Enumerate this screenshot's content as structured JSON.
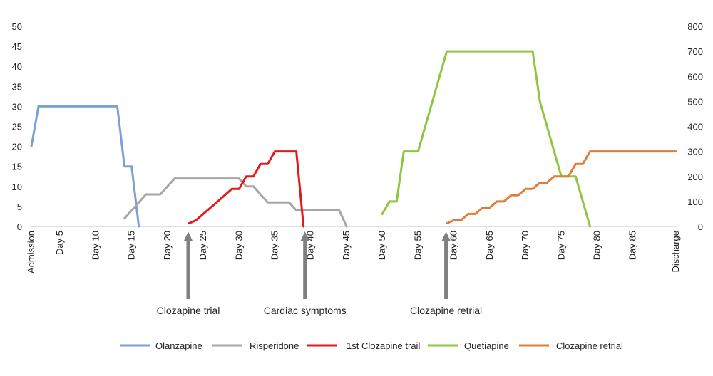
{
  "chart_data": {
    "type": "line",
    "title": "",
    "x_tick_labels": [
      "Admission",
      "Day 5",
      "Day 10",
      "Day 15",
      "Day 20",
      "Day 25",
      "Day 30",
      "Day 35",
      "Day 40",
      "Day 45",
      "Day 50",
      "Day 55",
      "Day 60",
      "Day 65",
      "Day 70",
      "Day 75",
      "Day 80",
      "Day 85",
      "Discharge"
    ],
    "x_tick_days": [
      1,
      5,
      10,
      15,
      20,
      25,
      30,
      35,
      40,
      45,
      50,
      55,
      60,
      65,
      70,
      75,
      80,
      85,
      91
    ],
    "x_range": [
      1,
      91
    ],
    "y_left": {
      "range": [
        0,
        50
      ],
      "ticks": [
        0,
        5,
        10,
        15,
        20,
        25,
        30,
        35,
        40,
        45,
        50
      ]
    },
    "y_right": {
      "range": [
        0,
        800
      ],
      "ticks": [
        0,
        100,
        200,
        300,
        400,
        500,
        600,
        700,
        800
      ]
    },
    "grid": false,
    "legend_position": "bottom",
    "series": [
      {
        "name": "Olanzapine",
        "axis": "left",
        "color": "#7aa0d4",
        "points": [
          [
            1,
            20
          ],
          [
            2,
            30
          ],
          [
            13,
            30
          ],
          [
            14,
            15
          ],
          [
            15,
            15
          ],
          [
            16,
            0
          ]
        ]
      },
      {
        "name": "Risperidone",
        "axis": "left",
        "color": "#a6a6a6",
        "points": [
          [
            14,
            2
          ],
          [
            15,
            4
          ],
          [
            16,
            6
          ],
          [
            17,
            8
          ],
          [
            19,
            8
          ],
          [
            20,
            10
          ],
          [
            21,
            12
          ],
          [
            30,
            12
          ],
          [
            31,
            10
          ],
          [
            32,
            10
          ],
          [
            33,
            8
          ],
          [
            34,
            6
          ],
          [
            37,
            6
          ],
          [
            38,
            4
          ],
          [
            44,
            4
          ],
          [
            45,
            0
          ]
        ]
      },
      {
        "name": "1st Clozapine trail",
        "axis": "right",
        "color": "#e31a1c",
        "points": [
          [
            23,
            12.5
          ],
          [
            24,
            25
          ],
          [
            25,
            50
          ],
          [
            26,
            75
          ],
          [
            27,
            100
          ],
          [
            28,
            125
          ],
          [
            29,
            150
          ],
          [
            30,
            150
          ],
          [
            31,
            200
          ],
          [
            32,
            200
          ],
          [
            33,
            250
          ],
          [
            34,
            250
          ],
          [
            35,
            300
          ],
          [
            38,
            300
          ],
          [
            39,
            0
          ]
        ]
      },
      {
        "name": "Quetiapine",
        "axis": "right",
        "color": "#8dc63f",
        "points": [
          [
            50,
            50
          ],
          [
            51,
            100
          ],
          [
            52,
            100
          ],
          [
            53,
            300
          ],
          [
            55,
            300
          ],
          [
            56,
            400
          ],
          [
            57,
            500
          ],
          [
            58,
            600
          ],
          [
            59,
            700
          ],
          [
            71,
            700
          ],
          [
            72,
            500
          ],
          [
            73,
            400
          ],
          [
            74,
            300
          ],
          [
            75,
            200
          ],
          [
            77,
            200
          ],
          [
            79,
            0
          ]
        ]
      },
      {
        "name": "Clozapine retrial",
        "axis": "right",
        "color": "#e07b39",
        "points": [
          [
            59,
            12.5
          ],
          [
            60,
            25
          ],
          [
            61,
            25
          ],
          [
            62,
            50
          ],
          [
            63,
            50
          ],
          [
            64,
            75
          ],
          [
            65,
            75
          ],
          [
            66,
            100
          ],
          [
            67,
            100
          ],
          [
            68,
            125
          ],
          [
            69,
            125
          ],
          [
            70,
            150
          ],
          [
            71,
            150
          ],
          [
            72,
            175
          ],
          [
            73,
            175
          ],
          [
            74,
            200
          ],
          [
            76,
            200
          ],
          [
            77,
            250
          ],
          [
            78,
            250
          ],
          [
            79,
            300
          ],
          [
            91,
            300
          ]
        ]
      }
    ],
    "annotations": [
      {
        "label": "Clozapine trial",
        "day": 22.9
      },
      {
        "label": "Cardiac symptoms",
        "day": 39.2
      },
      {
        "label": "Clozapine retrial",
        "day": 58.9
      }
    ]
  }
}
